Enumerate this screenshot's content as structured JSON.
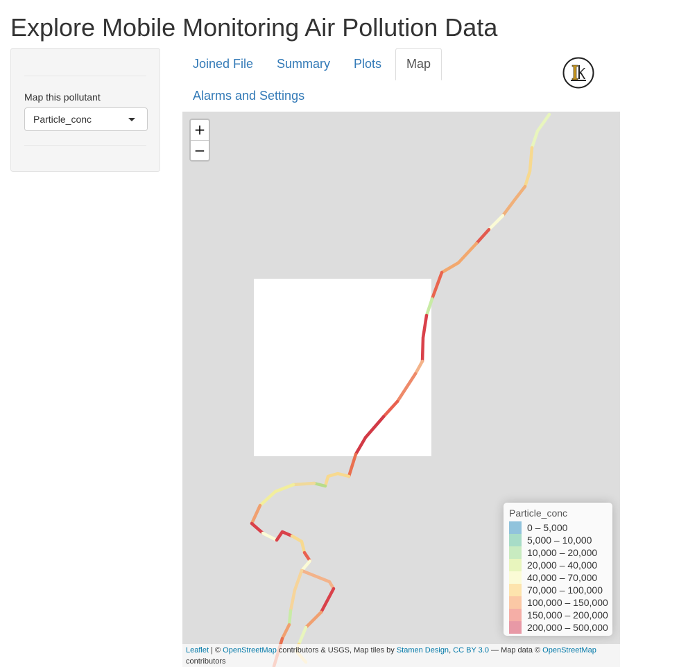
{
  "page": {
    "title": "Explore Mobile Monitoring Air Pollution Data"
  },
  "sidebar": {
    "label": "Map this pollutant",
    "select_value": "Particle_conc"
  },
  "tabs": [
    {
      "label": "Joined File",
      "active": false
    },
    {
      "label": "Summary",
      "active": false
    },
    {
      "label": "Plots",
      "active": false
    },
    {
      "label": "Map",
      "active": true
    },
    {
      "label": "Alarms and Settings",
      "active": false
    }
  ],
  "map": {
    "zoom_in": "+",
    "zoom_out": "−",
    "legend": {
      "title": "Particle_conc",
      "items": [
        {
          "label": "0 – 5,000",
          "color": "#91c3dc"
        },
        {
          "label": "5,000 – 10,000",
          "color": "#a7dcc7"
        },
        {
          "label": "10,000 – 20,000",
          "color": "#c8ebc0"
        },
        {
          "label": "20,000 – 40,000",
          "color": "#e8f5bd"
        },
        {
          "label": "40,000 – 70,000",
          "color": "#fbfbd6"
        },
        {
          "label": "70,000 – 100,000",
          "color": "#fde4ad"
        },
        {
          "label": "100,000 – 150,000",
          "color": "#fbc8a5"
        },
        {
          "label": "150,000 – 200,000",
          "color": "#f5aea6"
        },
        {
          "label": "200,000 – 500,000",
          "color": "#e899a6"
        }
      ]
    },
    "attribution": {
      "leaflet": "Leaflet",
      "sep1": " | © ",
      "osm1": "OpenStreetMap",
      "text1": " contributors & USGS, Map tiles by ",
      "stamen": "Stamen Design",
      "comma": ", ",
      "license": "CC BY 3.0",
      "text2": " — Map data © ",
      "osm2": "OpenStreetMap",
      "text3": " contributors"
    }
  }
}
